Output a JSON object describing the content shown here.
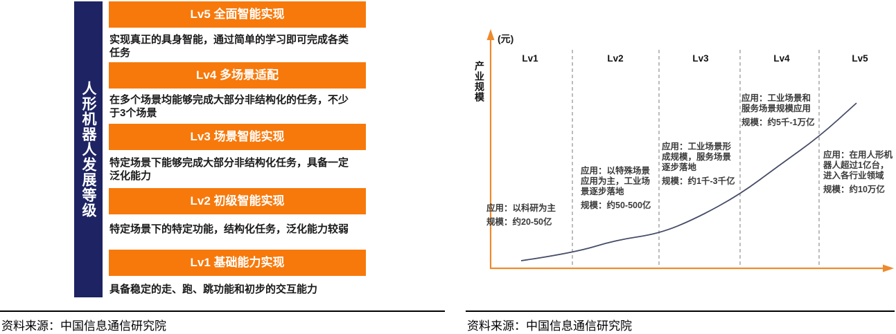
{
  "left_panel": {
    "axis_title": "人形机器人发展等级",
    "levels": [
      {
        "title": "Lv5 全面智能实现",
        "desc": "实现真正的具身智能，通过简单的学习即可完成各类任务"
      },
      {
        "title": "Lv4 多场景适配",
        "desc": "在多个场景均能够完成大部分非结构化的任务，不少于3个场景"
      },
      {
        "title": "Lv3 场景智能实现",
        "desc": "特定场景下能够完成大部分非结构化任务，具备一定泛化能力"
      },
      {
        "title": "Lv2 初级智能实现",
        "desc": "特定场景下的特定功能，结构化任务，泛化能力较弱"
      },
      {
        "title": "Lv1 基础能力实现",
        "desc": "具备稳定的走、跑、跳功能和初步的交互能力"
      }
    ]
  },
  "chart_data": {
    "type": "line",
    "ylabel": "产业规模",
    "y_unit_label": "(元)",
    "xlabel": "",
    "categories": [
      "Lv1",
      "Lv2",
      "Lv3",
      "Lv4",
      "Lv5"
    ],
    "stages": [
      {
        "level": "Lv1",
        "application": "应用：以科研为主",
        "scale": "规模：约20-50亿",
        "scale_range_yi": [
          20,
          50
        ]
      },
      {
        "level": "Lv2",
        "application": "应用：以特殊场景应用为主，工业场景逐步落地",
        "scale": "规模：约50-500亿",
        "scale_range_yi": [
          50,
          500
        ]
      },
      {
        "level": "Lv3",
        "application": "应用：工业场景形成规模，服务场景逐步落地",
        "scale": "规模：约1千-3千亿",
        "scale_range_yi": [
          1000,
          3000
        ]
      },
      {
        "level": "Lv4",
        "application": "应用：工业场景和服务场景规模应用",
        "scale": "规模：约5千-1万亿",
        "scale_range_yi": [
          5000,
          10000
        ]
      },
      {
        "level": "Lv5",
        "application": "应用：在用人形机器人超过1亿台，进入各行业领域",
        "scale": "规模：约10万亿",
        "scale_range_yi": [
          100000,
          100000
        ]
      }
    ],
    "curve": {
      "shape": "exponential-growth",
      "points_norm": [
        [
          0,
          0.046
        ],
        [
          0.153,
          0.092
        ],
        [
          0.285,
          0.172
        ],
        [
          0.411,
          0.209
        ],
        [
          0.525,
          0.305
        ],
        [
          0.653,
          0.448
        ],
        [
          0.767,
          0.619
        ],
        [
          0.888,
          0.795
        ],
        [
          1,
          1
        ]
      ]
    },
    "grid": "dashed vertical separators between level stages",
    "legend": "none",
    "colors": {
      "axis": "#EE8A2E",
      "curve": "#454C66",
      "separator": "#A0A0A0"
    }
  },
  "footers": {
    "left_source": "资料来源：中国信息通信研究院",
    "right_source": "资料来源：中国信息通信研究院"
  },
  "theme": {
    "orange": "#F7790B",
    "navy": "#1E2363"
  }
}
